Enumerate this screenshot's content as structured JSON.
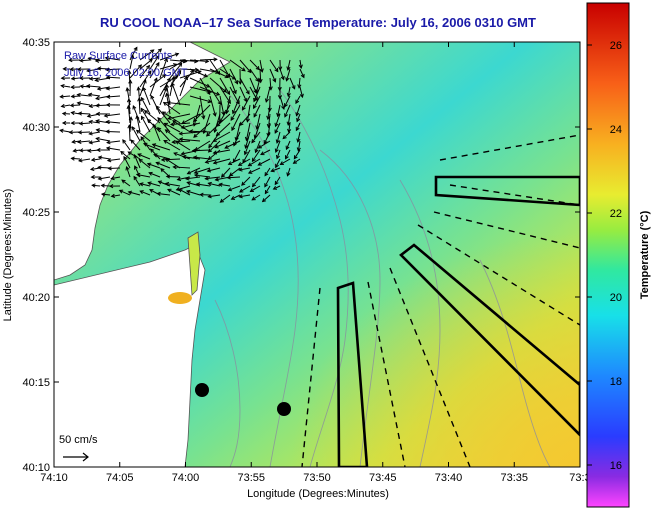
{
  "chart_data": {
    "type": "heatmap",
    "title": "RU COOL  NOAA–17  Sea Surface Temperature:  July 16, 2006 0310 GMT",
    "xlabel": "Longitude (Degrees:Minutes)",
    "ylabel": "Latitude (Degrees:Minutes)",
    "colorbar_label": "Temperature (°C)",
    "x_ticks": [
      "74:10",
      "74:05",
      "74:00",
      "73:55",
      "73:50",
      "73:45",
      "73:40",
      "73:35",
      "73:3"
    ],
    "y_ticks": [
      "40:35",
      "40:30",
      "40:25",
      "40:20",
      "40:15",
      "40:10"
    ],
    "colorbar_ticks": [
      "26",
      "24",
      "22",
      "20",
      "18",
      "16"
    ],
    "colorbar_range": [
      15,
      27
    ],
    "legend_line1": "Raw Surface Currents",
    "legend_line2": "July 16, 2006 02:00 GMT",
    "scale_label": "50 cm/s",
    "colors": {
      "title": "#1a1aa8",
      "land": "#ffffff",
      "water_cool": "#38d8d0",
      "water_mid": "#a8ec60",
      "water_warm": "#f0d838",
      "contour": "#8a8aa0",
      "vectors": "#000000",
      "boxes": "#000000"
    }
  }
}
